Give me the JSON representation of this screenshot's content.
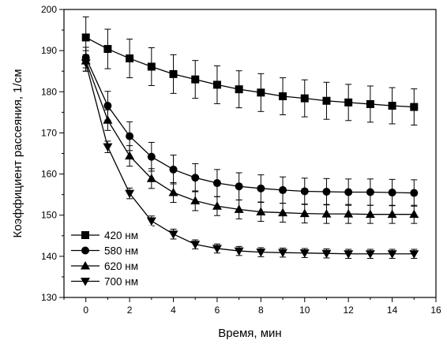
{
  "chart_data": {
    "type": "line",
    "title": "",
    "xlabel": "Время, мин",
    "ylabel": "Коэффициент рассеяния, 1/см",
    "xlim": [
      -1,
      16
    ],
    "ylim": [
      130,
      200
    ],
    "xticks": [
      0,
      2,
      4,
      6,
      8,
      10,
      12,
      14,
      16
    ],
    "xtick_labels": [
      "0",
      "2",
      "4",
      "6",
      "8",
      "10",
      "12",
      "14",
      "16"
    ],
    "yticks": [
      130,
      140,
      150,
      160,
      170,
      180,
      190,
      200
    ],
    "ytick_labels": [
      "130",
      "140",
      "150",
      "160",
      "170",
      "180",
      "190",
      "200"
    ],
    "grid": false,
    "legend_position": "bottom-left",
    "x": [
      0,
      1,
      2,
      3,
      4,
      5,
      6,
      7,
      8,
      9,
      10,
      11,
      12,
      13,
      14,
      15
    ],
    "series": [
      {
        "name": "420 нм",
        "marker": "square",
        "values": [
          193.2,
          190.4,
          188.1,
          186.1,
          184.3,
          183.0,
          181.7,
          180.6,
          179.8,
          178.9,
          178.4,
          177.8,
          177.4,
          177.0,
          176.6,
          176.3
        ],
        "errors": [
          5.0,
          4.8,
          4.7,
          4.6,
          4.7,
          4.6,
          4.6,
          4.5,
          4.6,
          4.5,
          4.5,
          4.5,
          4.4,
          4.4,
          4.4,
          4.4
        ]
      },
      {
        "name": "580 нм",
        "marker": "circle",
        "values": [
          188.3,
          176.6,
          169.2,
          164.2,
          161.1,
          159.1,
          157.8,
          157.0,
          156.5,
          156.1,
          155.8,
          155.7,
          155.6,
          155.6,
          155.5,
          155.4
        ],
        "errors": [
          2.5,
          3.5,
          3.5,
          3.5,
          3.5,
          3.4,
          3.3,
          3.3,
          3.3,
          3.2,
          3.2,
          3.2,
          3.2,
          3.2,
          3.2,
          3.2
        ]
      },
      {
        "name": "620 нм",
        "marker": "triangle-up",
        "values": [
          187.5,
          173.1,
          164.4,
          158.9,
          155.5,
          153.5,
          152.2,
          151.4,
          150.8,
          150.6,
          150.4,
          150.3,
          150.3,
          150.2,
          150.2,
          150.2
        ],
        "errors": [
          2.5,
          2.5,
          2.5,
          2.4,
          2.4,
          2.4,
          2.3,
          2.3,
          2.3,
          2.3,
          2.3,
          2.3,
          2.3,
          2.2,
          2.2,
          2.2
        ]
      },
      {
        "name": "700 нм",
        "marker": "triangle-down",
        "values": [
          187.0,
          166.6,
          155.3,
          148.6,
          145.4,
          142.9,
          141.9,
          141.3,
          141.0,
          140.9,
          140.8,
          140.7,
          140.6,
          140.6,
          140.6,
          140.6
        ],
        "errors": [
          2.0,
          1.4,
          1.3,
          1.2,
          1.2,
          1.1,
          1.1,
          1.1,
          1.1,
          1.1,
          1.1,
          1.1,
          1.1,
          1.1,
          1.1,
          1.1
        ]
      }
    ]
  }
}
